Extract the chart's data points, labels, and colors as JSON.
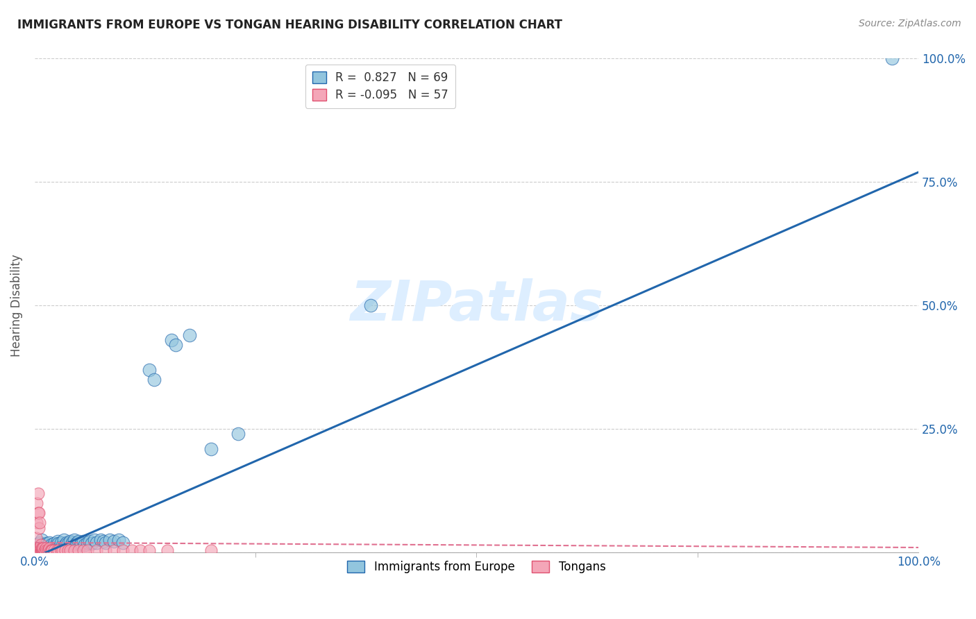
{
  "title": "IMMIGRANTS FROM EUROPE VS TONGAN HEARING DISABILITY CORRELATION CHART",
  "source": "Source: ZipAtlas.com",
  "ylabel": "Hearing Disability",
  "blue_color": "#92c5de",
  "pink_color": "#f4a6b8",
  "blue_line_color": "#2166ac",
  "pink_line_color": "#d6604d",
  "blue_scatter": [
    [
      0.001,
      0.005
    ],
    [
      0.002,
      0.008
    ],
    [
      0.002,
      0.012
    ],
    [
      0.003,
      0.006
    ],
    [
      0.003,
      0.015
    ],
    [
      0.004,
      0.008
    ],
    [
      0.004,
      0.01
    ],
    [
      0.005,
      0.005
    ],
    [
      0.005,
      0.018
    ],
    [
      0.006,
      0.01
    ],
    [
      0.006,
      0.02
    ],
    [
      0.007,
      0.008
    ],
    [
      0.007,
      0.015
    ],
    [
      0.008,
      0.012
    ],
    [
      0.008,
      0.025
    ],
    [
      0.009,
      0.006
    ],
    [
      0.01,
      0.01
    ],
    [
      0.011,
      0.008
    ],
    [
      0.012,
      0.015
    ],
    [
      0.013,
      0.005
    ],
    [
      0.014,
      0.018
    ],
    [
      0.015,
      0.012
    ],
    [
      0.016,
      0.008
    ],
    [
      0.017,
      0.02
    ],
    [
      0.018,
      0.01
    ],
    [
      0.019,
      0.015
    ],
    [
      0.02,
      0.008
    ],
    [
      0.021,
      0.012
    ],
    [
      0.022,
      0.018
    ],
    [
      0.023,
      0.006
    ],
    [
      0.025,
      0.015
    ],
    [
      0.026,
      0.022
    ],
    [
      0.027,
      0.018
    ],
    [
      0.028,
      0.01
    ],
    [
      0.03,
      0.02
    ],
    [
      0.031,
      0.012
    ],
    [
      0.033,
      0.025
    ],
    [
      0.035,
      0.015
    ],
    [
      0.036,
      0.02
    ],
    [
      0.038,
      0.018
    ],
    [
      0.04,
      0.022
    ],
    [
      0.042,
      0.015
    ],
    [
      0.043,
      0.02
    ],
    [
      0.045,
      0.025
    ],
    [
      0.047,
      0.018
    ],
    [
      0.048,
      0.02
    ],
    [
      0.05,
      0.022
    ],
    [
      0.052,
      0.015
    ],
    [
      0.053,
      0.018
    ],
    [
      0.055,
      0.022
    ],
    [
      0.057,
      0.015
    ],
    [
      0.06,
      0.02
    ],
    [
      0.062,
      0.022
    ],
    [
      0.065,
      0.018
    ],
    [
      0.068,
      0.025
    ],
    [
      0.07,
      0.02
    ],
    [
      0.075,
      0.025
    ],
    [
      0.078,
      0.022
    ],
    [
      0.08,
      0.02
    ],
    [
      0.085,
      0.025
    ],
    [
      0.09,
      0.022
    ],
    [
      0.095,
      0.025
    ],
    [
      0.1,
      0.02
    ],
    [
      0.13,
      0.37
    ],
    [
      0.135,
      0.35
    ],
    [
      0.155,
      0.43
    ],
    [
      0.16,
      0.42
    ],
    [
      0.175,
      0.44
    ],
    [
      0.2,
      0.21
    ],
    [
      0.23,
      0.24
    ],
    [
      0.38,
      0.5
    ],
    [
      0.97,
      1.0
    ]
  ],
  "pink_scatter": [
    [
      0.001,
      0.005
    ],
    [
      0.001,
      0.01
    ],
    [
      0.002,
      0.005
    ],
    [
      0.002,
      0.015
    ],
    [
      0.002,
      0.03
    ],
    [
      0.003,
      0.005
    ],
    [
      0.003,
      0.06
    ],
    [
      0.003,
      0.1
    ],
    [
      0.004,
      0.005
    ],
    [
      0.004,
      0.08
    ],
    [
      0.004,
      0.12
    ],
    [
      0.005,
      0.005
    ],
    [
      0.005,
      0.05
    ],
    [
      0.005,
      0.08
    ],
    [
      0.006,
      0.005
    ],
    [
      0.006,
      0.01
    ],
    [
      0.006,
      0.06
    ],
    [
      0.007,
      0.005
    ],
    [
      0.007,
      0.01
    ],
    [
      0.007,
      0.015
    ],
    [
      0.008,
      0.005
    ],
    [
      0.008,
      0.008
    ],
    [
      0.009,
      0.005
    ],
    [
      0.009,
      0.008
    ],
    [
      0.01,
      0.005
    ],
    [
      0.01,
      0.008
    ],
    [
      0.011,
      0.005
    ],
    [
      0.012,
      0.005
    ],
    [
      0.013,
      0.008
    ],
    [
      0.014,
      0.005
    ],
    [
      0.015,
      0.005
    ],
    [
      0.016,
      0.005
    ],
    [
      0.017,
      0.008
    ],
    [
      0.018,
      0.005
    ],
    [
      0.019,
      0.005
    ],
    [
      0.02,
      0.005
    ],
    [
      0.022,
      0.005
    ],
    [
      0.025,
      0.005
    ],
    [
      0.027,
      0.005
    ],
    [
      0.03,
      0.005
    ],
    [
      0.032,
      0.005
    ],
    [
      0.035,
      0.005
    ],
    [
      0.038,
      0.005
    ],
    [
      0.04,
      0.005
    ],
    [
      0.045,
      0.005
    ],
    [
      0.05,
      0.005
    ],
    [
      0.055,
      0.005
    ],
    [
      0.06,
      0.005
    ],
    [
      0.07,
      0.005
    ],
    [
      0.08,
      0.005
    ],
    [
      0.09,
      0.005
    ],
    [
      0.1,
      0.005
    ],
    [
      0.11,
      0.005
    ],
    [
      0.12,
      0.005
    ],
    [
      0.13,
      0.005
    ],
    [
      0.15,
      0.005
    ],
    [
      0.2,
      0.005
    ]
  ],
  "blue_line_x": [
    0.0,
    1.0
  ],
  "blue_line_y": [
    -0.01,
    0.77
  ],
  "pink_line_x": [
    0.0,
    1.0
  ],
  "pink_line_y": [
    0.02,
    0.01
  ],
  "watermark": "ZIPatlas",
  "xlim": [
    0.0,
    1.0
  ],
  "ylim": [
    0.0,
    1.0
  ],
  "yticks": [
    0.0,
    0.25,
    0.5,
    0.75,
    1.0
  ],
  "ytick_labels": [
    "",
    "25.0%",
    "50.0%",
    "75.0%",
    "100.0%"
  ],
  "xtick_left": "0.0%",
  "xtick_right": "100.0%"
}
